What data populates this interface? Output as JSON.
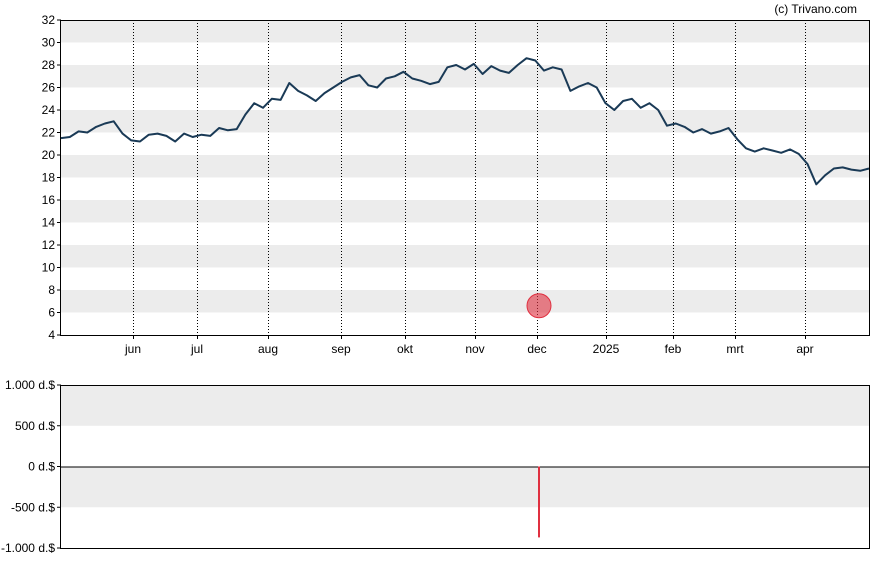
{
  "credit": "(c) Trivano.com",
  "chart_data": [
    {
      "type": "line",
      "ylim": [
        4,
        32
      ],
      "yticks": [
        "4",
        "6",
        "8",
        "10",
        "12",
        "14",
        "16",
        "18",
        "20",
        "22",
        "24",
        "26",
        "28",
        "30",
        "32"
      ],
      "xtick_labels": [
        "jun",
        "jul",
        "aug",
        "sep",
        "okt",
        "nov",
        "dec",
        "2025",
        "feb",
        "mrt",
        "apr"
      ],
      "grid": "horizontal bands, dotted vertical month lines",
      "line_color": "#1a3a56",
      "series": [
        {
          "values": [
            21.5,
            21.6,
            22.1,
            22.0,
            22.5,
            22.8,
            23.0,
            21.9,
            21.3,
            21.2,
            21.8,
            21.9,
            21.7,
            21.2,
            21.9,
            21.6,
            21.8,
            21.7,
            22.4,
            22.2,
            22.3,
            23.6,
            24.6,
            24.2,
            25.0,
            24.9,
            26.4,
            25.7,
            25.3,
            24.8,
            25.5,
            26.0,
            26.5,
            26.9,
            27.1,
            26.2,
            26.0,
            26.8,
            27.0,
            27.4,
            26.8,
            26.6,
            26.3,
            26.5,
            27.8,
            28.0,
            27.6,
            28.1,
            27.2,
            27.9,
            27.5,
            27.3,
            28.0,
            28.6,
            28.4,
            27.5,
            27.8,
            27.6,
            25.7,
            26.1,
            26.4,
            26.0,
            24.6,
            24.0,
            24.8,
            25.0,
            24.2,
            24.6,
            24.0,
            22.6,
            22.8,
            22.5,
            22.0,
            22.3,
            21.9,
            22.1,
            22.4,
            21.4,
            20.6,
            20.3,
            20.6,
            20.4,
            20.2,
            20.5,
            20.1,
            19.2,
            17.4,
            18.2,
            18.8,
            18.9,
            18.7,
            18.6,
            18.8
          ]
        }
      ],
      "marker": {
        "month": "dec",
        "value": 6.6,
        "color": "#e03040"
      }
    },
    {
      "type": "bar",
      "ylim": [
        -1000,
        1000
      ],
      "yticks": [
        "1.000 d.$",
        "500 d.$",
        "0 d.$",
        "-500 d.$",
        "-1.000 d.$"
      ],
      "series": [
        {
          "values": [
            {
              "month": "dec",
              "value": -870
            }
          ]
        }
      ],
      "bar_color": "#e03040"
    }
  ]
}
